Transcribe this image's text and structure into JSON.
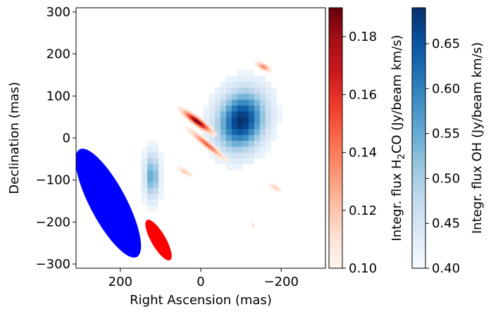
{
  "chart_data": {
    "type": "heatmap",
    "xlabel": "Right Ascension (mas)",
    "ylabel": "Declination (mas)",
    "xlim": [
      310,
      -310
    ],
    "ylim": [
      -310,
      310
    ],
    "xticks": [
      {
        "value": 200,
        "label": "200"
      },
      {
        "value": 0,
        "label": "0"
      },
      {
        "value": -200,
        "label": "−200"
      }
    ],
    "yticks": [
      {
        "value": 300,
        "label": "300"
      },
      {
        "value": 200,
        "label": "200"
      },
      {
        "value": 100,
        "label": "100"
      },
      {
        "value": 0,
        "label": "0"
      },
      {
        "value": -100,
        "label": "−100"
      },
      {
        "value": -200,
        "label": "−200"
      },
      {
        "value": -300,
        "label": "−300"
      }
    ],
    "colorbars": [
      {
        "name": "h2co",
        "label_prefix": "Integr. flux H",
        "label_sub": "2",
        "label_suffix": "CO (Jy/beam km/s)",
        "cmap": "Reds",
        "range": [
          0.1,
          0.19
        ],
        "ticks": [
          {
            "value": 0.1,
            "label": "0.10"
          },
          {
            "value": 0.12,
            "label": "0.12"
          },
          {
            "value": 0.14,
            "label": "0.14"
          },
          {
            "value": 0.16,
            "label": "0.16"
          },
          {
            "value": 0.18,
            "label": "0.18"
          }
        ]
      },
      {
        "name": "oh",
        "label": "Integr. flux OH (Jy/beam km/s)",
        "cmap": "Blues",
        "range": [
          0.4,
          0.69
        ],
        "ticks": [
          {
            "value": 0.4,
            "label": "0.40"
          },
          {
            "value": 0.45,
            "label": "0.45"
          },
          {
            "value": 0.5,
            "label": "0.50"
          },
          {
            "value": 0.55,
            "label": "0.55"
          },
          {
            "value": 0.6,
            "label": "0.60"
          },
          {
            "value": 0.65,
            "label": "0.65"
          }
        ]
      }
    ],
    "oh_emission": {
      "cell_size_mas": 14,
      "components": [
        {
          "ra": -100,
          "dec": 42,
          "sigma_ra": 38,
          "sigma_dec": 48,
          "peak": 0.69,
          "tilt_deg": 20
        },
        {
          "ra": 122,
          "dec": -90,
          "sigma_ra": 12,
          "sigma_dec": 36,
          "peak": 0.56,
          "tilt_deg": 0
        }
      ],
      "threshold": 0.405
    },
    "h2co_emission": {
      "cell_size_mas": 4,
      "components": [
        {
          "ra": 10,
          "dec": 40,
          "sigma_major": 24,
          "sigma_minor": 5,
          "peak": 0.19,
          "pa_deg": -35
        },
        {
          "ra": -15,
          "dec": -15,
          "sigma_major": 28,
          "sigma_minor": 4,
          "peak": 0.15,
          "pa_deg": -38
        },
        {
          "ra": -155,
          "dec": 170,
          "sigma_major": 10,
          "sigma_minor": 4,
          "peak": 0.14,
          "pa_deg": -25
        },
        {
          "ra": 40,
          "dec": -80,
          "sigma_major": 10,
          "sigma_minor": 3,
          "peak": 0.12,
          "pa_deg": -30
        },
        {
          "ra": -185,
          "dec": -118,
          "sigma_major": 8,
          "sigma_minor": 3,
          "peak": 0.12,
          "pa_deg": -30
        },
        {
          "ra": -130,
          "dec": -208,
          "sigma_major": 5,
          "sigma_minor": 2,
          "peak": 0.11,
          "pa_deg": 90
        }
      ],
      "threshold": 0.1015
    },
    "beams": [
      {
        "name": "oh-beam",
        "ra": 230,
        "dec": -155,
        "major": 145,
        "minor": 45,
        "pa_deg": 28,
        "color": "#0000ff"
      },
      {
        "name": "h2co-beam",
        "ra": 105,
        "dec": -243,
        "major": 55,
        "minor": 18,
        "pa_deg": 30,
        "color": "#ff0000"
      }
    ]
  }
}
